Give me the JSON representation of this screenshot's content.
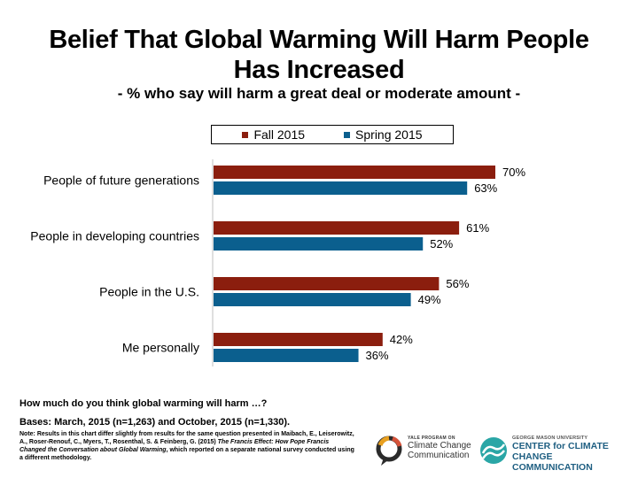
{
  "header": {
    "title_line1": "Belief That Global Warming Will Harm People",
    "title_line2": "Has Increased",
    "subtitle": "- % who say will harm a great deal or moderate amount -"
  },
  "legend": {
    "fall_label": "Fall 2015",
    "spring_label": "Spring 2015"
  },
  "chart_data": {
    "type": "bar",
    "orientation": "horizontal",
    "categories": [
      "People of future generations",
      "People in developing countries",
      "People in the U.S.",
      "Me personally"
    ],
    "series": [
      {
        "name": "Fall 2015",
        "values": [
          70,
          61,
          56,
          42
        ],
        "labels": [
          "70%",
          "61%",
          "56%",
          "42%"
        ],
        "color": "#8b1e0e"
      },
      {
        "name": "Spring 2015",
        "values": [
          63,
          52,
          49,
          36
        ],
        "labels": [
          "63%",
          "52%",
          "49%",
          "36%"
        ],
        "color": "#0b5f8e"
      }
    ],
    "xlim": [
      0,
      100
    ],
    "legend_position": "top",
    "grid": false
  },
  "footer": {
    "question": "How much do you think global warming will harm …?",
    "bases": "Bases: March, 2015 (n=1,263) and October, 2015 (n=1,330).",
    "note_part1": "Note: Results in this chart differ slightly from results for the same question presented in Maibach, E., Leiserowitz, A., Roser-Renouf, C., Myers, T., Rosenthal, S. & Feinberg, G. (2015) ",
    "note_italic": "The Francis Effect: How Pope Francis Changed the Conversation about Global Warming",
    "note_part2": ", which reported on a separate national survey conducted using a different methodology."
  },
  "logos": {
    "yale_small": "YALE PROGRAM ON",
    "yale_line1": "Climate Change",
    "yale_line2": "Communication",
    "gmu_small": "GEORGE MASON UNIVERSITY",
    "gmu_line1": "CENTER for CLIMATE CHANGE",
    "gmu_line2": "COMMUNICATION"
  }
}
